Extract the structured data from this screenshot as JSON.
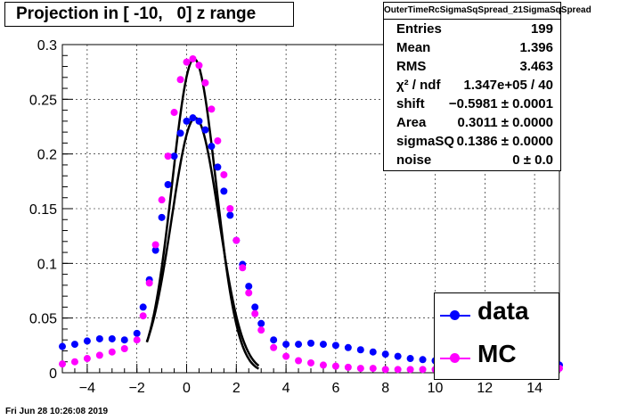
{
  "header": {
    "title": "Projection in [ -10,   0] z range"
  },
  "stats": {
    "name": "OuterTimeRcSigmaSqSpread_21SigmaSqSpread",
    "rows": [
      {
        "label": "Entries",
        "value": "199"
      },
      {
        "label": "Mean",
        "value": "1.396"
      },
      {
        "label": "RMS",
        "value": "3.463"
      },
      {
        "label": "χ² / ndf",
        "value": "1.347e+05 / 40"
      },
      {
        "label": "shift",
        "value": "−0.5981 ± 0.0001"
      },
      {
        "label": "Area",
        "value": "0.3011 ± 0.0000"
      },
      {
        "label": "sigmaSQ",
        "value": "0.1386 ± 0.0000"
      },
      {
        "label": "noise",
        "value": "0 ± 0.0"
      }
    ]
  },
  "legend": [
    {
      "label": "data",
      "color": "#0000ff"
    },
    {
      "label": "MC",
      "color": "#ff00ff"
    }
  ],
  "footer": {
    "timestamp": "Fri Jun 28 10:26:08 2019"
  },
  "chart_data": {
    "type": "scatter",
    "title": "Projection in [ -10,   0] z range",
    "xlabel": "",
    "ylabel": "",
    "xlim": [
      -5,
      15
    ],
    "ylim": [
      0,
      0.3
    ],
    "xticks": [
      -4,
      -2,
      0,
      2,
      4,
      6,
      8,
      10,
      12,
      14
    ],
    "yticks": [
      0,
      0.05,
      0.1,
      0.15,
      0.2,
      0.25,
      0.3
    ],
    "ytick_labels": [
      "0",
      "0.05",
      "0.1",
      "0.15",
      "0.2",
      "0.25",
      "0.3"
    ],
    "grid": true,
    "series": [
      {
        "name": "data",
        "color": "#0000ff",
        "x": [
          -5.0,
          -4.5,
          -4.0,
          -3.5,
          -3.0,
          -2.5,
          -2.0,
          -1.75,
          -1.5,
          -1.25,
          -1.0,
          -0.75,
          -0.5,
          -0.25,
          0.0,
          0.25,
          0.5,
          0.75,
          1.0,
          1.25,
          1.5,
          1.75,
          2.0,
          2.25,
          2.5,
          2.75,
          3.0,
          3.5,
          4.0,
          4.5,
          5.0,
          5.5,
          6.0,
          6.5,
          7.0,
          7.5,
          8.0,
          8.5,
          9.0,
          9.5,
          10.0,
          10.5,
          11.0,
          11.5,
          12.0,
          12.5,
          13.0,
          13.5,
          14.0,
          14.5,
          15.0
        ],
        "y": [
          0.024,
          0.026,
          0.029,
          0.031,
          0.031,
          0.03,
          0.036,
          0.06,
          0.085,
          0.112,
          0.142,
          0.172,
          0.198,
          0.219,
          0.23,
          0.233,
          0.23,
          0.222,
          0.207,
          0.188,
          0.166,
          0.144,
          0.121,
          0.099,
          0.079,
          0.06,
          0.045,
          0.03,
          0.026,
          0.026,
          0.027,
          0.026,
          0.025,
          0.023,
          0.021,
          0.019,
          0.017,
          0.015,
          0.013,
          0.012,
          0.011,
          0.01,
          0.01,
          0.009,
          0.009,
          0.008,
          0.008,
          0.007,
          0.007,
          0.007,
          0.007
        ]
      },
      {
        "name": "MC",
        "color": "#ff00ff",
        "x": [
          -5.0,
          -4.5,
          -4.0,
          -3.5,
          -3.0,
          -2.5,
          -2.0,
          -1.75,
          -1.5,
          -1.25,
          -1.0,
          -0.75,
          -0.5,
          -0.25,
          0.0,
          0.25,
          0.5,
          0.75,
          1.0,
          1.25,
          1.5,
          1.75,
          2.0,
          2.25,
          2.5,
          2.75,
          3.0,
          3.5,
          4.0,
          4.5,
          5.0,
          5.5,
          6.0,
          6.5,
          7.0,
          7.5,
          8.0,
          8.5,
          9.0,
          9.5,
          10.0,
          10.5,
          11.0,
          11.5,
          12.0,
          12.5,
          13.0,
          13.5,
          14.0,
          14.5,
          15.0
        ],
        "y": [
          0.008,
          0.01,
          0.013,
          0.016,
          0.019,
          0.022,
          0.03,
          0.052,
          0.082,
          0.117,
          0.158,
          0.198,
          0.238,
          0.268,
          0.284,
          0.287,
          0.281,
          0.265,
          0.241,
          0.212,
          0.181,
          0.15,
          0.121,
          0.096,
          0.073,
          0.054,
          0.039,
          0.023,
          0.015,
          0.011,
          0.009,
          0.007,
          0.006,
          0.005,
          0.004,
          0.004,
          0.003,
          0.003,
          0.003,
          0.003,
          0.003,
          0.003,
          0.003,
          0.003,
          0.003,
          0.003,
          0.003,
          0.003,
          0.004,
          0.004,
          0.004
        ]
      }
    ],
    "fits": [
      {
        "peak": 0.233,
        "center": 0.35,
        "sigma": 0.95
      },
      {
        "peak": 0.287,
        "center": 0.3,
        "sigma": 0.88
      }
    ]
  }
}
